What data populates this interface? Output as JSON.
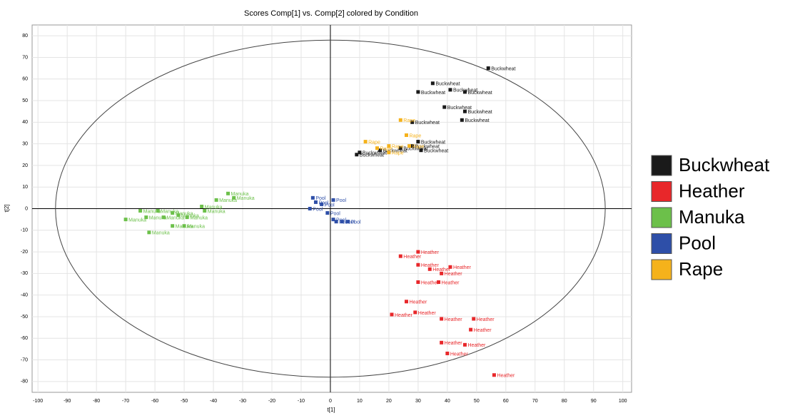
{
  "chart_data": {
    "type": "scatter",
    "title": "Scores Comp[1] vs. Comp[2] colored by Condition",
    "xlabel": "t[1]",
    "ylabel": "t[2]",
    "xlim": [
      -102,
      103
    ],
    "ylim": [
      -85,
      85
    ],
    "xticks": [
      -100,
      -90,
      -80,
      -70,
      -60,
      -50,
      -40,
      -30,
      -20,
      -10,
      0,
      10,
      20,
      30,
      40,
      50,
      60,
      70,
      80,
      90,
      100
    ],
    "yticks": [
      -80,
      -70,
      -60,
      -50,
      -40,
      -30,
      -20,
      -10,
      0,
      10,
      20,
      30,
      40,
      50,
      60,
      70,
      80
    ],
    "grid": true,
    "ellipse": {
      "rx": 94,
      "ry": 78
    },
    "legend": "right",
    "series": [
      {
        "name": "Buckwheat",
        "color": "#1a1a1a",
        "x": [
          54,
          35,
          30,
          41,
          46,
          39,
          46,
          45,
          28,
          30,
          28,
          24,
          10,
          9,
          17,
          31
        ],
        "values": [
          65,
          58,
          54,
          55,
          54,
          47,
          45,
          41,
          40,
          31,
          29,
          28,
          26,
          25,
          27,
          27
        ]
      },
      {
        "name": "Heather",
        "color": "#e8272a",
        "x": [
          30,
          24,
          30,
          41,
          34,
          38,
          37,
          30,
          26,
          21,
          29,
          38,
          49,
          48,
          38,
          46,
          40,
          56
        ],
        "values": [
          -20,
          -22,
          -26,
          -27,
          -28,
          -30,
          -34,
          -34,
          -43,
          -49,
          -48,
          -51,
          -51,
          -56,
          -62,
          -63,
          -67,
          -77
        ]
      },
      {
        "name": "Manuka",
        "color": "#6cc04a",
        "x": [
          -35,
          -39,
          -33,
          -44,
          -43,
          -65,
          -59,
          -70,
          -63,
          -54,
          -52,
          -49,
          -54,
          -62,
          -57,
          -50
        ],
        "values": [
          7,
          4,
          5,
          1,
          -1,
          -1,
          -1,
          -5,
          -4,
          -2,
          -3,
          -4,
          -8,
          -11,
          -4,
          -8
        ]
      },
      {
        "name": "Pool",
        "color": "#2e4fa8",
        "x": [
          -6,
          1,
          -5,
          -7,
          -1,
          1,
          4,
          6,
          2,
          -3
        ],
        "values": [
          5,
          4,
          3,
          0,
          -2,
          -5,
          -6,
          -6,
          -6,
          2
        ]
      },
      {
        "name": "Rape",
        "color": "#f5b21b",
        "x": [
          24,
          26,
          12,
          20,
          16,
          20,
          27
        ],
        "values": [
          41,
          34,
          31,
          29,
          28,
          26,
          29
        ]
      }
    ]
  }
}
